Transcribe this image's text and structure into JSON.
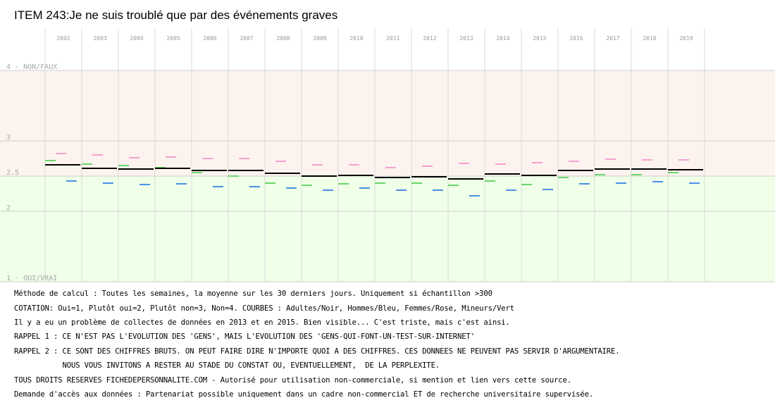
{
  "title": "ITEM 243:Je ne suis troublé que par des événements graves",
  "notes": [
    "Méthode de calcul : Toutes les semaines, la moyenne sur les 30 derniers jours. Uniquement si échantillon >300",
    "COTATION: Oui=1, Plutôt oui=2, Plutôt non=3, Non=4. COURBES : Adultes/Noir, Hommes/Bleu, Femmes/Rose, Mineurs/Vert",
    "Il y a eu un problème de collectes de données en 2013 et en 2015. Bien visible... C'est triste, mais c'est ainsi.",
    "RAPPEL 1 : CE N'EST PAS L'EVOLUTION DES 'GENS', MAIS L'EVOLUTION DES 'GENS-QUI-FONT-UN-TEST-SUR-INTERNET'",
    "RAPPEL 2 : CE SONT DES CHIFFRES BRUTS. ON PEUT FAIRE DIRE N'IMPORTE QUOI A DES CHIFFRES. CES DONNEES NE PEUVENT PAS SERVIR D'ARGUMENTAIRE.",
    "           NOUS VOUS INVITONS A RESTER AU STADE DU CONSTAT OU, EVENTUELLEMENT,  DE LA PERPLEXITE.",
    "TOUS DROITS RESERVES FICHEDEPERSONNALITE.COM - Autorisé pour utilisation non-commerciale, si mention et lien vers cette source.",
    "Demande d'accès aux données : Partenariat possible uniquement dans un cadre non-commercial ET de recherche universitaire supervisée."
  ],
  "chart_data": {
    "type": "line",
    "title": "ITEM 243:Je ne suis troublé que par des événements graves",
    "x": [
      "2002",
      "2003",
      "2004",
      "2005",
      "2006",
      "2007",
      "2008",
      "2009",
      "2010",
      "2011",
      "2012",
      "2013",
      "2014",
      "2015",
      "2016",
      "2017",
      "2018",
      "2019"
    ],
    "ylim": [
      1,
      4
    ],
    "y_tick_labels": [
      {
        "value": 4,
        "label": "4 - NON/FAUX"
      },
      {
        "value": 3,
        "label": "3"
      },
      {
        "value": 2.5,
        "label": "2.5"
      },
      {
        "value": 2,
        "label": "2"
      },
      {
        "value": 1,
        "label": "1 - OUI/VRAI"
      }
    ],
    "grid": true,
    "bands": [
      {
        "from": 2.5,
        "to": 4,
        "color": "#fdf3ee"
      },
      {
        "from": 1,
        "to": 2.5,
        "color": "#efffe8"
      }
    ],
    "series": [
      {
        "name": "Adultes",
        "color": "#000000",
        "values": [
          2.66,
          2.61,
          2.6,
          2.61,
          2.58,
          2.58,
          2.54,
          2.5,
          2.51,
          2.48,
          2.49,
          2.46,
          2.53,
          2.51,
          2.58,
          2.6,
          2.6,
          2.59
        ]
      },
      {
        "name": "Hommes",
        "color": "#4a90e8",
        "values": [
          2.43,
          2.4,
          2.38,
          2.39,
          2.35,
          2.35,
          2.33,
          2.3,
          2.33,
          2.3,
          2.3,
          2.22,
          2.3,
          2.31,
          2.39,
          2.4,
          2.42,
          2.4
        ]
      },
      {
        "name": "Femmes",
        "color": "#f4a0d0",
        "values": [
          2.82,
          2.8,
          2.76,
          2.77,
          2.75,
          2.75,
          2.71,
          2.66,
          2.66,
          2.62,
          2.64,
          2.68,
          2.67,
          2.69,
          2.71,
          2.74,
          2.73,
          2.73
        ]
      },
      {
        "name": "Mineurs",
        "color": "#6ad66a",
        "values": [
          2.72,
          2.67,
          2.65,
          2.62,
          2.55,
          2.5,
          2.4,
          2.37,
          2.39,
          2.4,
          2.4,
          2.37,
          2.43,
          2.38,
          2.48,
          2.52,
          2.52,
          2.55
        ]
      }
    ]
  }
}
